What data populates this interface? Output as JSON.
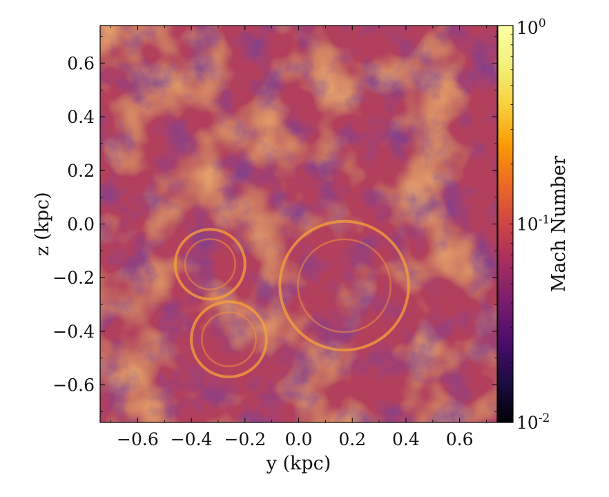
{
  "chart_data": {
    "type": "heatmap",
    "title": "",
    "xlabel": "y  (kpc)",
    "ylabel": "z  (kpc)",
    "xlim": [
      -0.74,
      0.74
    ],
    "ylim": [
      -0.74,
      0.74
    ],
    "x_ticks": [
      -0.6,
      -0.4,
      -0.2,
      0.0,
      0.2,
      0.4,
      0.6
    ],
    "y_ticks": [
      -0.6,
      -0.4,
      -0.2,
      0.0,
      0.2,
      0.4,
      0.6
    ],
    "x_tick_labels": [
      "−0.6",
      "−0.4",
      "−0.2",
      "0.0",
      "0.2",
      "0.4",
      "0.6"
    ],
    "y_tick_labels": [
      "−0.6",
      "−0.4",
      "−0.2",
      "0.0",
      "0.2",
      "0.4",
      "0.6"
    ],
    "colormap": "inferno",
    "colorbar": {
      "label": "Mach Number",
      "scale": "log",
      "range": [
        0.01,
        1.0
      ],
      "ticks": [
        0.01,
        0.1,
        1.0
      ],
      "tick_labels": [
        {
          "base": "10",
          "exp": "-2"
        },
        {
          "base": "10",
          "exp": "-1"
        },
        {
          "base": "10",
          "exp": "0"
        }
      ]
    },
    "features": [
      {
        "kind": "ring",
        "center": [
          -0.26,
          -0.43
        ],
        "radius": 0.14
      },
      {
        "kind": "ring",
        "center": [
          -0.33,
          -0.15
        ],
        "radius": 0.13
      },
      {
        "kind": "ring",
        "center": [
          0.17,
          -0.23
        ],
        "radius": 0.24
      }
    ],
    "grid": false
  },
  "colors": {
    "background": "#ffffff",
    "axis": "#000000",
    "field_base": "#b2405d"
  }
}
